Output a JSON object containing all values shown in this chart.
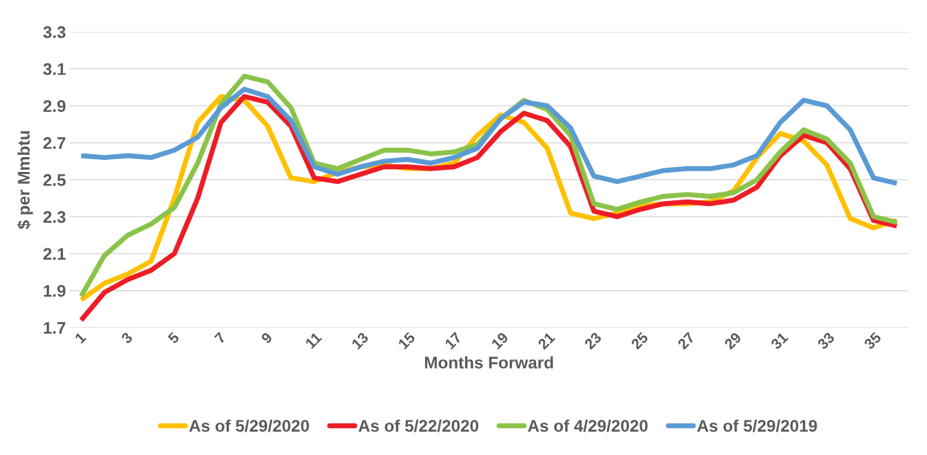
{
  "chart_data": {
    "type": "line",
    "xlabel": "Months Forward",
    "ylabel": "$ per Mmbtu",
    "categories": [
      "1",
      null,
      "3",
      null,
      "5",
      null,
      "7",
      null,
      "9",
      null,
      "11",
      null,
      "13",
      null,
      "15",
      null,
      "17",
      null,
      "19",
      null,
      "21",
      null,
      "23",
      null,
      "25",
      null,
      "27",
      null,
      "29",
      null,
      "31",
      null,
      "33",
      null,
      "35",
      null
    ],
    "series": [
      {
        "name": "As of 5/29/2020",
        "color": "#ffc000",
        "values": [
          1.85,
          1.94,
          1.99,
          2.06,
          2.4,
          2.81,
          2.95,
          2.93,
          2.79,
          2.51,
          2.49,
          2.54,
          2.57,
          2.58,
          2.56,
          2.56,
          2.59,
          2.74,
          2.85,
          2.81,
          2.67,
          2.32,
          2.29,
          2.32,
          2.36,
          2.37,
          2.37,
          2.38,
          2.44,
          2.62,
          2.75,
          2.71,
          2.58,
          2.29,
          2.24,
          2.28
        ]
      },
      {
        "name": "As of 5/22/2020",
        "color": "#ee1c25",
        "values": [
          1.74,
          1.89,
          1.96,
          2.01,
          2.1,
          2.4,
          2.81,
          2.95,
          2.92,
          2.79,
          2.51,
          2.49,
          2.53,
          2.57,
          2.57,
          2.56,
          2.57,
          2.62,
          2.76,
          2.86,
          2.82,
          2.68,
          2.33,
          2.3,
          2.34,
          2.37,
          2.38,
          2.37,
          2.39,
          2.46,
          2.63,
          2.74,
          2.7,
          2.56,
          2.28,
          2.25
        ]
      },
      {
        "name": "As of 4/29/2020",
        "color": "#8bc34a",
        "values": [
          1.87,
          2.09,
          2.2,
          2.26,
          2.35,
          2.59,
          2.91,
          3.06,
          3.03,
          2.89,
          2.59,
          2.56,
          2.61,
          2.66,
          2.66,
          2.64,
          2.65,
          2.69,
          2.83,
          2.93,
          2.88,
          2.74,
          2.37,
          2.34,
          2.38,
          2.41,
          2.42,
          2.41,
          2.43,
          2.5,
          2.65,
          2.77,
          2.72,
          2.59,
          2.3,
          2.27
        ]
      },
      {
        "name": "As of 5/29/2019",
        "color": "#5b9bd5",
        "values": [
          2.63,
          2.62,
          2.63,
          2.62,
          2.66,
          2.73,
          2.89,
          2.99,
          2.95,
          2.82,
          2.57,
          2.53,
          2.57,
          2.6,
          2.61,
          2.59,
          2.62,
          2.67,
          2.83,
          2.92,
          2.9,
          2.78,
          2.52,
          2.49,
          2.52,
          2.55,
          2.56,
          2.56,
          2.58,
          2.63,
          2.81,
          2.93,
          2.9,
          2.77,
          2.51,
          2.48
        ]
      }
    ],
    "ylim": [
      1.7,
      3.3
    ],
    "yticks": [
      {
        "value": 1.7,
        "label": "1.7"
      },
      {
        "value": 1.9,
        "label": "1.9"
      },
      {
        "value": 2.1,
        "label": "2.1"
      },
      {
        "value": 2.3,
        "label": "2.3"
      },
      {
        "value": 2.5,
        "label": "2.5"
      },
      {
        "value": 2.7,
        "label": "2.7"
      },
      {
        "value": 2.9,
        "label": "2.9"
      },
      {
        "value": 3.1,
        "label": "3.1"
      },
      {
        "value": 3.3,
        "label": "3.3"
      }
    ],
    "grid": "y",
    "legend": "bottom",
    "marker": "none",
    "line_style": "solid"
  }
}
